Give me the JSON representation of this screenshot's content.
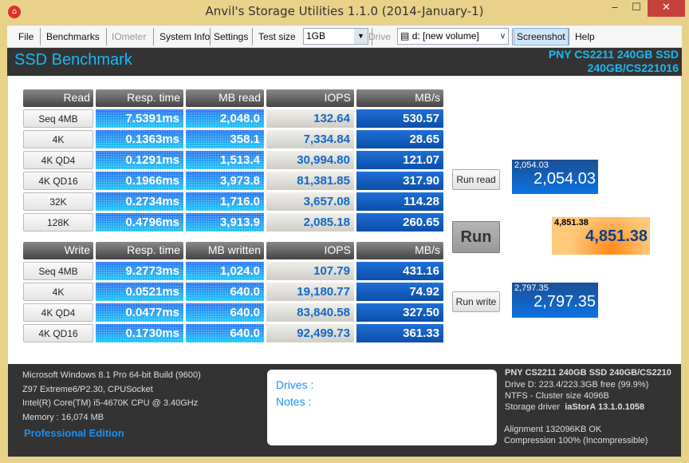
{
  "window": {
    "title": "Anvil's Storage Utilities 1.1.0 (2014-January-1)",
    "minimize": "‒",
    "maximize": "☐",
    "close": "✕"
  },
  "toolbar": {
    "file": "File",
    "benchmarks": "Benchmarks",
    "iometer": "IOmeter",
    "system_info": "System Info",
    "settings": "Settings",
    "test_size_label": "Test size",
    "test_size_value": "1GB",
    "drive_label": "Drive",
    "drive_value": "d: [new volume]",
    "screenshot": "Screenshot",
    "help": "Help"
  },
  "header": {
    "title": "SSD Benchmark",
    "drive_line1": "PNY CS2211 240GB SSD",
    "drive_line2": "240GB/CS221016"
  },
  "read": {
    "headers": [
      "Read",
      "Resp. time",
      "MB read",
      "IOPS",
      "MB/s"
    ],
    "rows": [
      [
        "Seq 4MB",
        "7.5391ms",
        "2,048.0",
        "132.64",
        "530.57"
      ],
      [
        "4K",
        "0.1363ms",
        "358.1",
        "7,334.84",
        "28.65"
      ],
      [
        "4K QD4",
        "0.1291ms",
        "1,513.4",
        "30,994.80",
        "121.07"
      ],
      [
        "4K QD16",
        "0.1966ms",
        "3,973.8",
        "81,381.85",
        "317.90"
      ],
      [
        "32K",
        "0.2734ms",
        "1,716.0",
        "3,657.08",
        "114.28"
      ],
      [
        "128K",
        "0.4796ms",
        "3,913.9",
        "2,085.18",
        "260.65"
      ]
    ]
  },
  "write": {
    "headers": [
      "Write",
      "Resp. time",
      "MB written",
      "IOPS",
      "MB/s"
    ],
    "rows": [
      [
        "Seq 4MB",
        "9.2773ms",
        "1,024.0",
        "107.79",
        "431.16"
      ],
      [
        "4K",
        "0.0521ms",
        "640.0",
        "19,180.77",
        "74.92"
      ],
      [
        "4K QD4",
        "0.0477ms",
        "640.0",
        "83,840.58",
        "327.50"
      ],
      [
        "4K QD16",
        "0.1730ms",
        "640.0",
        "92,499.73",
        "361.33"
      ]
    ]
  },
  "scores": {
    "run_read": "Run read",
    "run": "Run",
    "run_write": "Run write",
    "read_small": "2,054.03",
    "read_big": "2,054.03",
    "total_small": "4,851.38",
    "total_big": "4,851.38",
    "write_small": "2,797.35",
    "write_big": "2,797.35"
  },
  "system": {
    "os": "Microsoft Windows 8.1 Pro 64-bit Build (9600)",
    "board": "Z97 Extreme6/P2.30, CPUSocket",
    "cpu": "Intel(R) Core(TM) i5-4670K CPU @ 3.40GHz",
    "memory": "Memory : 16,074 MB",
    "edition": "Professional Edition"
  },
  "notes": {
    "drives": "Drives :",
    "notes": "Notes :"
  },
  "drive_info": {
    "model": "PNY CS2211 240GB SSD 240GB/CS2210",
    "space": "Drive D: 223.4/223.3GB free (99.9%)",
    "fs": "NTFS - Cluster size 4096B",
    "driver_label": "Storage driver",
    "driver_value": "iaStorA 13.1.0.1058",
    "alignment": "Alignment 132096KB OK",
    "compression": "Compression 100% (Incompressible)"
  },
  "colors": {
    "accent": "#1ab8f5",
    "score_total": "#ffc04a",
    "score_blue": "#0c72e0"
  }
}
